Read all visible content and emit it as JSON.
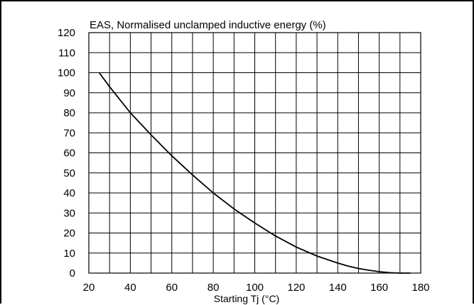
{
  "chart_data": {
    "type": "line",
    "title": "EAS, Normalised unclamped inductive energy (%)",
    "xlabel": "Starting Tj (°C)",
    "ylabel": "",
    "xlim": [
      20,
      180
    ],
    "ylim": [
      0,
      120
    ],
    "x_ticks": [
      20,
      40,
      60,
      80,
      100,
      120,
      140,
      160,
      180
    ],
    "y_ticks": [
      0,
      10,
      20,
      30,
      40,
      50,
      60,
      70,
      80,
      90,
      100,
      110,
      120
    ],
    "grid": true,
    "grid_x_step": 10,
    "series": [
      {
        "x": [
          25,
          30,
          40,
          50,
          60,
          70,
          80,
          90,
          100,
          110,
          120,
          130,
          140,
          145,
          150,
          155,
          160,
          165,
          170,
          175
        ],
        "values": [
          100,
          93,
          80,
          69,
          58.5,
          49,
          40,
          32,
          25,
          18.5,
          13,
          8.5,
          5,
          3.5,
          2.3,
          1.4,
          0.7,
          0.2,
          0,
          0
        ]
      }
    ],
    "colors": {
      "line": "#000000",
      "grid": "#000000"
    }
  }
}
